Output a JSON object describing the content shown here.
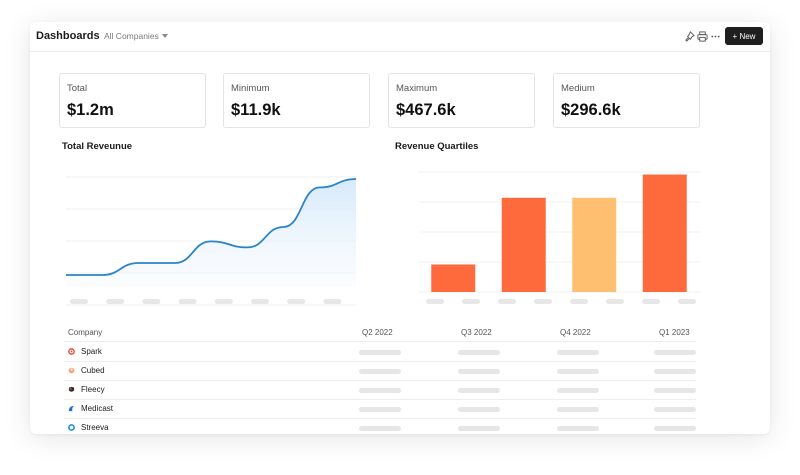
{
  "header": {
    "title": "Dashboards",
    "company_filter": "All Companies",
    "new_button": "+ New",
    "icons": [
      "pin-icon",
      "print-icon",
      "more-icon"
    ]
  },
  "stats": [
    {
      "label": "Total",
      "value": "$1.2m"
    },
    {
      "label": "Minimum",
      "value": "$11.9k"
    },
    {
      "label": "Maximum",
      "value": "$467.6k"
    },
    {
      "label": "Medium",
      "value": "$296.6k"
    }
  ],
  "charts": {
    "revenue_title": "Total Reveunue",
    "quartiles_title": "Revenue Quartiles"
  },
  "chart_data": [
    {
      "type": "area",
      "title": "Total Reveunue",
      "x": [
        0,
        1,
        2,
        3,
        4,
        5,
        6,
        7,
        8
      ],
      "values": [
        1.0,
        1.0,
        2.0,
        2.0,
        3.8,
        3.3,
        5.0,
        8.3,
        9.0
      ],
      "ylim": [
        0,
        10
      ],
      "grid": true,
      "color": "#2a84c8"
    },
    {
      "type": "bar",
      "title": "Revenue Quartiles",
      "categories": [
        "",
        "",
        "",
        ""
      ],
      "values": [
        2.6,
        8.9,
        8.9,
        11.1
      ],
      "ylim": [
        0,
        12
      ],
      "colors": [
        "#ff6a3d",
        "#ff6a3d",
        "#ffbf70",
        "#ff6a3d"
      ],
      "grid": true
    }
  ],
  "table": {
    "columns": [
      "Company",
      "Q2 2022",
      "Q3 2022",
      "Q4 2022",
      "Q1 2023"
    ],
    "rows": [
      {
        "name": "Spark",
        "icon": "spark-icon",
        "color": "#e8453c"
      },
      {
        "name": "Cubed",
        "icon": "cubed-icon",
        "color": "#f5a27a"
      },
      {
        "name": "Fleecy",
        "icon": "fleecy-icon",
        "color": "#2b2b2b"
      },
      {
        "name": "Medicast",
        "icon": "medicast-icon",
        "color": "#1e6fd9"
      },
      {
        "name": "Streeva",
        "icon": "streeva-icon",
        "color": "#1a8ae0"
      }
    ]
  }
}
